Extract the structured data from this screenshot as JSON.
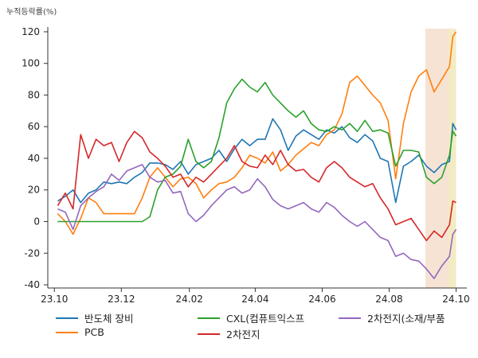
{
  "chart_data": {
    "type": "line",
    "ylabel": "누적등락률(%)",
    "ylim": [
      -42,
      125
    ],
    "yticks": [
      -40,
      -20,
      0,
      20,
      40,
      60,
      80,
      100,
      120
    ],
    "xlim": [
      "2023-09-25",
      "2024-10-05"
    ],
    "xticks": [
      {
        "label": "23.10",
        "date": "2023-10-01"
      },
      {
        "label": "23.12",
        "date": "2023-12-01"
      },
      {
        "label": "24.02",
        "date": "2024-02-01"
      },
      {
        "label": "24.04",
        "date": "2024-04-01"
      },
      {
        "label": "24.06",
        "date": "2024-06-01"
      },
      {
        "label": "24.08",
        "date": "2024-08-01"
      },
      {
        "label": "24.10",
        "date": "2024-10-01"
      }
    ],
    "highlights": [
      {
        "start": "2024-09-03",
        "end": "2024-10-01",
        "color": "#f6e3d4"
      },
      {
        "start": "2024-09-24",
        "end": "2024-10-01",
        "color": "#f3ebc4"
      }
    ],
    "legend_position": "bottom",
    "series": [
      {
        "name": "반도체 장비",
        "color": "#1f77b4",
        "points": [
          [
            "2023-10-04",
            13
          ],
          [
            "2023-10-11",
            16
          ],
          [
            "2023-10-18",
            20
          ],
          [
            "2023-10-25",
            12
          ],
          [
            "2023-11-01",
            18
          ],
          [
            "2023-11-08",
            20
          ],
          [
            "2023-11-15",
            25
          ],
          [
            "2023-11-22",
            24
          ],
          [
            "2023-11-29",
            25
          ],
          [
            "2023-12-06",
            24
          ],
          [
            "2023-12-13",
            28
          ],
          [
            "2023-12-20",
            31
          ],
          [
            "2023-12-27",
            37
          ],
          [
            "2024-01-03",
            37
          ],
          [
            "2024-01-10",
            36
          ],
          [
            "2024-01-17",
            33
          ],
          [
            "2024-01-24",
            38
          ],
          [
            "2024-01-31",
            30
          ],
          [
            "2024-02-07",
            36
          ],
          [
            "2024-02-14",
            38
          ],
          [
            "2024-02-21",
            40
          ],
          [
            "2024-02-28",
            45
          ],
          [
            "2024-03-06",
            38
          ],
          [
            "2024-03-13",
            46
          ],
          [
            "2024-03-20",
            52
          ],
          [
            "2024-03-27",
            48
          ],
          [
            "2024-04-03",
            52
          ],
          [
            "2024-04-10",
            52
          ],
          [
            "2024-04-17",
            65
          ],
          [
            "2024-04-24",
            58
          ],
          [
            "2024-05-01",
            45
          ],
          [
            "2024-05-08",
            54
          ],
          [
            "2024-05-15",
            58
          ],
          [
            "2024-05-22",
            55
          ],
          [
            "2024-05-29",
            52
          ],
          [
            "2024-06-05",
            58
          ],
          [
            "2024-06-12",
            56
          ],
          [
            "2024-06-19",
            60
          ],
          [
            "2024-06-26",
            53
          ],
          [
            "2024-07-03",
            50
          ],
          [
            "2024-07-10",
            55
          ],
          [
            "2024-07-17",
            51
          ],
          [
            "2024-07-24",
            40
          ],
          [
            "2024-07-31",
            38
          ],
          [
            "2024-08-07",
            12
          ],
          [
            "2024-08-14",
            35
          ],
          [
            "2024-08-21",
            38
          ],
          [
            "2024-08-28",
            42
          ],
          [
            "2024-09-04",
            35
          ],
          [
            "2024-09-11",
            31
          ],
          [
            "2024-09-18",
            36
          ],
          [
            "2024-09-25",
            38
          ],
          [
            "2024-09-28",
            62
          ],
          [
            "2024-10-01",
            58
          ]
        ]
      },
      {
        "name": "PCB",
        "color": "#ff7f0e",
        "points": [
          [
            "2023-10-04",
            5
          ],
          [
            "2023-10-11",
            0
          ],
          [
            "2023-10-18",
            -8
          ],
          [
            "2023-10-25",
            2
          ],
          [
            "2023-11-01",
            15
          ],
          [
            "2023-11-08",
            12
          ],
          [
            "2023-11-15",
            5
          ],
          [
            "2023-11-22",
            5
          ],
          [
            "2023-11-29",
            5
          ],
          [
            "2023-12-06",
            5
          ],
          [
            "2023-12-13",
            5
          ],
          [
            "2023-12-20",
            15
          ],
          [
            "2023-12-27",
            28
          ],
          [
            "2024-01-03",
            34
          ],
          [
            "2024-01-10",
            28
          ],
          [
            "2024-01-17",
            22
          ],
          [
            "2024-01-24",
            27
          ],
          [
            "2024-01-31",
            28
          ],
          [
            "2024-02-07",
            24
          ],
          [
            "2024-02-14",
            15
          ],
          [
            "2024-02-21",
            20
          ],
          [
            "2024-02-28",
            24
          ],
          [
            "2024-03-06",
            25
          ],
          [
            "2024-03-13",
            28
          ],
          [
            "2024-03-20",
            34
          ],
          [
            "2024-03-27",
            42
          ],
          [
            "2024-04-03",
            40
          ],
          [
            "2024-04-10",
            37
          ],
          [
            "2024-04-17",
            44
          ],
          [
            "2024-04-24",
            32
          ],
          [
            "2024-05-01",
            36
          ],
          [
            "2024-05-08",
            42
          ],
          [
            "2024-05-15",
            46
          ],
          [
            "2024-05-22",
            50
          ],
          [
            "2024-05-29",
            48
          ],
          [
            "2024-06-05",
            55
          ],
          [
            "2024-06-12",
            58
          ],
          [
            "2024-06-19",
            68
          ],
          [
            "2024-06-26",
            88
          ],
          [
            "2024-07-03",
            92
          ],
          [
            "2024-07-10",
            86
          ],
          [
            "2024-07-17",
            80
          ],
          [
            "2024-07-24",
            75
          ],
          [
            "2024-07-31",
            64
          ],
          [
            "2024-08-07",
            27
          ],
          [
            "2024-08-14",
            62
          ],
          [
            "2024-08-21",
            82
          ],
          [
            "2024-08-28",
            92
          ],
          [
            "2024-09-04",
            96
          ],
          [
            "2024-09-11",
            82
          ],
          [
            "2024-09-18",
            90
          ],
          [
            "2024-09-25",
            98
          ],
          [
            "2024-09-28",
            117
          ],
          [
            "2024-10-01",
            120
          ]
        ]
      },
      {
        "name": "CXL(컴퓨트익스프",
        "color": "#2ca02c",
        "points": [
          [
            "2023-10-04",
            0
          ],
          [
            "2023-10-11",
            0
          ],
          [
            "2023-10-18",
            0
          ],
          [
            "2023-10-25",
            0
          ],
          [
            "2023-11-01",
            0
          ],
          [
            "2023-11-08",
            0
          ],
          [
            "2023-11-15",
            0
          ],
          [
            "2023-11-22",
            0
          ],
          [
            "2023-11-29",
            0
          ],
          [
            "2023-12-06",
            0
          ],
          [
            "2023-12-13",
            0
          ],
          [
            "2023-12-20",
            0
          ],
          [
            "2023-12-27",
            3
          ],
          [
            "2024-01-03",
            20
          ],
          [
            "2024-01-10",
            28
          ],
          [
            "2024-01-17",
            30
          ],
          [
            "2024-01-24",
            35
          ],
          [
            "2024-01-31",
            52
          ],
          [
            "2024-02-07",
            38
          ],
          [
            "2024-02-14",
            34
          ],
          [
            "2024-02-21",
            38
          ],
          [
            "2024-02-28",
            53
          ],
          [
            "2024-03-06",
            75
          ],
          [
            "2024-03-13",
            84
          ],
          [
            "2024-03-20",
            90
          ],
          [
            "2024-03-27",
            85
          ],
          [
            "2024-04-03",
            82
          ],
          [
            "2024-04-10",
            88
          ],
          [
            "2024-04-17",
            80
          ],
          [
            "2024-04-24",
            75
          ],
          [
            "2024-05-01",
            70
          ],
          [
            "2024-05-08",
            66
          ],
          [
            "2024-05-15",
            70
          ],
          [
            "2024-05-22",
            62
          ],
          [
            "2024-05-29",
            58
          ],
          [
            "2024-06-05",
            57
          ],
          [
            "2024-06-12",
            60
          ],
          [
            "2024-06-19",
            58
          ],
          [
            "2024-06-26",
            62
          ],
          [
            "2024-07-03",
            57
          ],
          [
            "2024-07-10",
            64
          ],
          [
            "2024-07-17",
            57
          ],
          [
            "2024-07-24",
            58
          ],
          [
            "2024-07-31",
            56
          ],
          [
            "2024-08-07",
            35
          ],
          [
            "2024-08-14",
            45
          ],
          [
            "2024-08-21",
            45
          ],
          [
            "2024-08-28",
            44
          ],
          [
            "2024-09-04",
            28
          ],
          [
            "2024-09-11",
            24
          ],
          [
            "2024-09-18",
            28
          ],
          [
            "2024-09-25",
            42
          ],
          [
            "2024-09-28",
            57
          ],
          [
            "2024-10-01",
            54
          ]
        ]
      },
      {
        "name": "2차전지",
        "color": "#d62728",
        "points": [
          [
            "2023-10-04",
            10
          ],
          [
            "2023-10-11",
            18
          ],
          [
            "2023-10-18",
            8
          ],
          [
            "2023-10-25",
            55
          ],
          [
            "2023-11-01",
            40
          ],
          [
            "2023-11-08",
            52
          ],
          [
            "2023-11-15",
            48
          ],
          [
            "2023-11-22",
            50
          ],
          [
            "2023-11-29",
            38
          ],
          [
            "2023-12-06",
            50
          ],
          [
            "2023-12-13",
            57
          ],
          [
            "2023-12-20",
            53
          ],
          [
            "2023-12-27",
            44
          ],
          [
            "2024-01-03",
            40
          ],
          [
            "2024-01-10",
            35
          ],
          [
            "2024-01-17",
            28
          ],
          [
            "2024-01-24",
            30
          ],
          [
            "2024-01-31",
            22
          ],
          [
            "2024-02-07",
            28
          ],
          [
            "2024-02-14",
            25
          ],
          [
            "2024-02-21",
            30
          ],
          [
            "2024-02-28",
            35
          ],
          [
            "2024-03-06",
            40
          ],
          [
            "2024-03-13",
            48
          ],
          [
            "2024-03-20",
            38
          ],
          [
            "2024-03-27",
            35
          ],
          [
            "2024-04-03",
            34
          ],
          [
            "2024-04-10",
            42
          ],
          [
            "2024-04-17",
            36
          ],
          [
            "2024-04-24",
            45
          ],
          [
            "2024-05-01",
            36
          ],
          [
            "2024-05-08",
            32
          ],
          [
            "2024-05-15",
            33
          ],
          [
            "2024-05-22",
            28
          ],
          [
            "2024-05-29",
            25
          ],
          [
            "2024-06-05",
            34
          ],
          [
            "2024-06-12",
            38
          ],
          [
            "2024-06-19",
            34
          ],
          [
            "2024-06-26",
            28
          ],
          [
            "2024-07-03",
            25
          ],
          [
            "2024-07-10",
            22
          ],
          [
            "2024-07-17",
            24
          ],
          [
            "2024-07-24",
            15
          ],
          [
            "2024-07-31",
            8
          ],
          [
            "2024-08-07",
            -2
          ],
          [
            "2024-08-14",
            0
          ],
          [
            "2024-08-21",
            2
          ],
          [
            "2024-08-28",
            -5
          ],
          [
            "2024-09-04",
            -12
          ],
          [
            "2024-09-11",
            -6
          ],
          [
            "2024-09-18",
            -10
          ],
          [
            "2024-09-25",
            -2
          ],
          [
            "2024-09-28",
            13
          ],
          [
            "2024-10-01",
            12
          ]
        ]
      },
      {
        "name": "2차전지(소재/부품",
        "color": "#9467bd",
        "points": [
          [
            "2023-10-04",
            8
          ],
          [
            "2023-10-11",
            6
          ],
          [
            "2023-10-18",
            -5
          ],
          [
            "2023-10-25",
            10
          ],
          [
            "2023-11-01",
            15
          ],
          [
            "2023-11-08",
            19
          ],
          [
            "2023-11-15",
            22
          ],
          [
            "2023-11-22",
            30
          ],
          [
            "2023-11-29",
            26
          ],
          [
            "2023-12-06",
            32
          ],
          [
            "2023-12-13",
            34
          ],
          [
            "2023-12-20",
            36
          ],
          [
            "2023-12-27",
            28
          ],
          [
            "2024-01-03",
            25
          ],
          [
            "2024-01-10",
            26
          ],
          [
            "2024-01-17",
            18
          ],
          [
            "2024-01-24",
            19
          ],
          [
            "2024-01-31",
            5
          ],
          [
            "2024-02-07",
            0
          ],
          [
            "2024-02-14",
            4
          ],
          [
            "2024-02-21",
            10
          ],
          [
            "2024-02-28",
            15
          ],
          [
            "2024-03-06",
            20
          ],
          [
            "2024-03-13",
            22
          ],
          [
            "2024-03-20",
            18
          ],
          [
            "2024-03-27",
            20
          ],
          [
            "2024-04-03",
            27
          ],
          [
            "2024-04-10",
            22
          ],
          [
            "2024-04-17",
            14
          ],
          [
            "2024-04-24",
            10
          ],
          [
            "2024-05-01",
            8
          ],
          [
            "2024-05-08",
            10
          ],
          [
            "2024-05-15",
            12
          ],
          [
            "2024-05-22",
            8
          ],
          [
            "2024-05-29",
            6
          ],
          [
            "2024-06-05",
            12
          ],
          [
            "2024-06-12",
            9
          ],
          [
            "2024-06-19",
            4
          ],
          [
            "2024-06-26",
            0
          ],
          [
            "2024-07-03",
            -3
          ],
          [
            "2024-07-10",
            0
          ],
          [
            "2024-07-17",
            -5
          ],
          [
            "2024-07-24",
            -10
          ],
          [
            "2024-07-31",
            -12
          ],
          [
            "2024-08-07",
            -22
          ],
          [
            "2024-08-14",
            -20
          ],
          [
            "2024-08-21",
            -24
          ],
          [
            "2024-08-28",
            -25
          ],
          [
            "2024-09-04",
            -30
          ],
          [
            "2024-09-11",
            -36
          ],
          [
            "2024-09-18",
            -28
          ],
          [
            "2024-09-25",
            -22
          ],
          [
            "2024-09-28",
            -8
          ],
          [
            "2024-10-01",
            -5
          ]
        ]
      }
    ]
  }
}
